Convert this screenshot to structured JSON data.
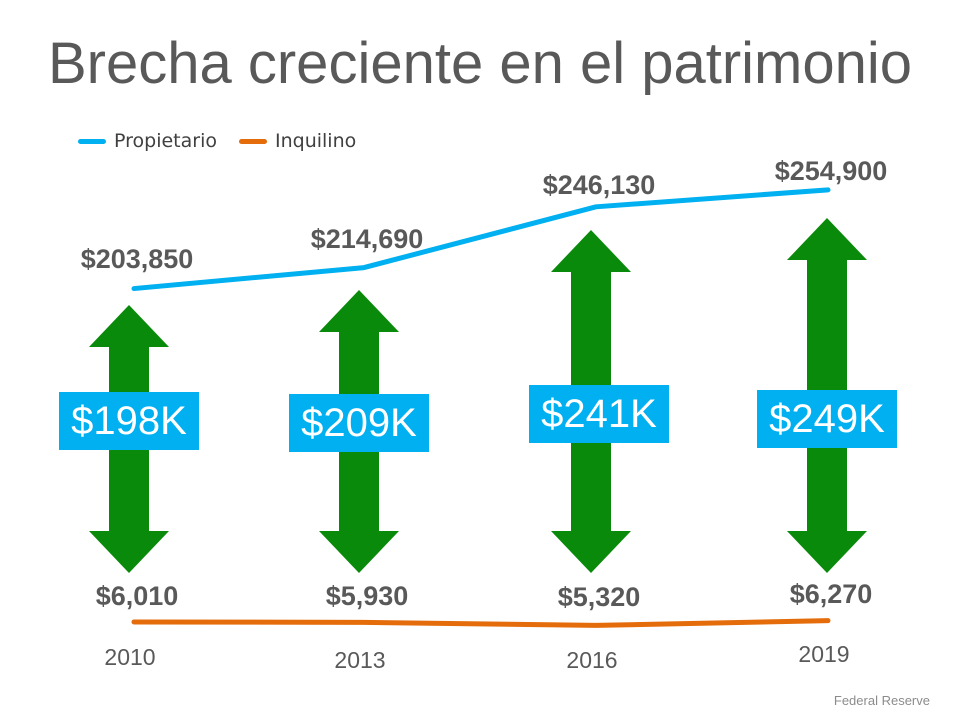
{
  "title": "Brecha creciente en el patrimonio",
  "source": "Federal Reserve",
  "colors": {
    "owner": "#00b0f0",
    "renter": "#e46c0a",
    "arrow": "#0a8a0a",
    "gap_box": "#00b0f0",
    "value_label": "#595959",
    "year_label": "#595959"
  },
  "chart_data": {
    "type": "line",
    "categories": [
      "2010",
      "2013",
      "2016",
      "2019"
    ],
    "series": [
      {
        "name": "Propietario",
        "values": [
          203850,
          214690,
          246130,
          254900
        ],
        "labels": [
          "$203,850",
          "$214,690",
          "$246,130",
          "$254,900"
        ]
      },
      {
        "name": "Inquilino",
        "values": [
          6010,
          5930,
          5320,
          6270
        ],
        "labels": [
          "$6,010",
          "$5,930",
          "$5,320",
          "$6,270"
        ]
      }
    ],
    "gaps": [
      "$198K",
      "$209K",
      "$241K",
      "$249K"
    ],
    "legend_position": "top-left",
    "grid": false
  }
}
